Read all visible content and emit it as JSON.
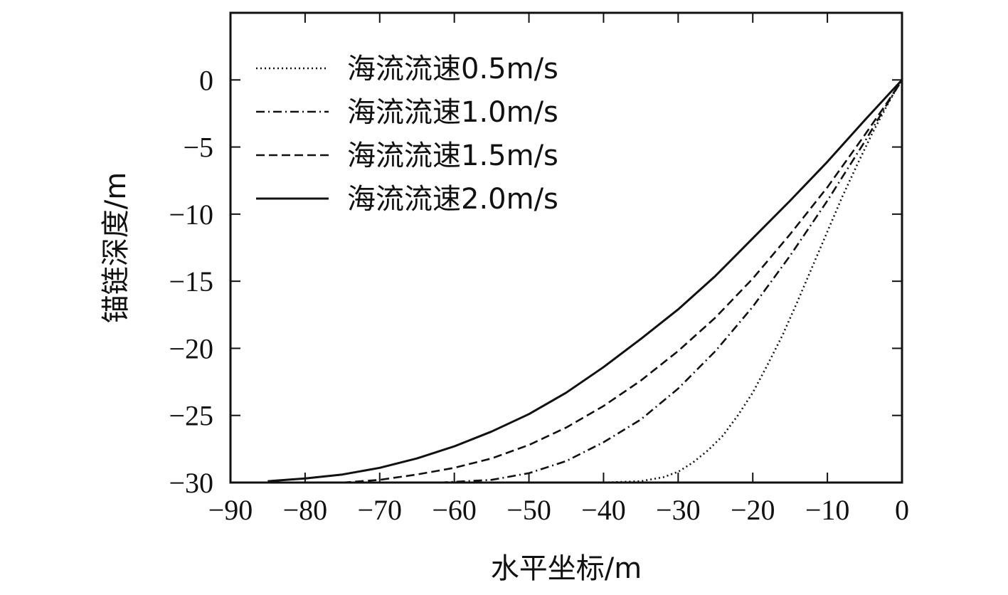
{
  "chart_data": {
    "type": "line",
    "title": "",
    "xlabel": "水平坐标/m",
    "ylabel": "锚链深度/m",
    "xlim": [
      -90,
      0
    ],
    "ylim": [
      -30,
      5
    ],
    "xticks": [
      -90,
      -80,
      -70,
      -60,
      -50,
      -40,
      -30,
      -20,
      -10,
      0
    ],
    "yticks": [
      0,
      -5,
      -10,
      -15,
      -20,
      -25,
      -30
    ],
    "xtick_labels": [
      "−90",
      "−80",
      "−70",
      "−60",
      "−50",
      "−40",
      "−30",
      "−20",
      "−10",
      "0"
    ],
    "ytick_labels": [
      "0",
      "−5",
      "−10",
      "−15",
      "−20",
      "−25",
      "−30"
    ],
    "grid": false,
    "legend_position": "top-left",
    "series": [
      {
        "name": "海流流速0.5m/s",
        "style": "dotted",
        "x": [
          -40,
          -35,
          -32,
          -30,
          -28,
          -26,
          -24,
          -22,
          -20,
          -18,
          -16,
          -14,
          -12,
          -10,
          -8,
          -6,
          -4,
          -2,
          -1,
          0
        ],
        "y": [
          -30,
          -29.9,
          -29.6,
          -29.2,
          -28.5,
          -27.6,
          -26.5,
          -25.0,
          -23.3,
          -21.2,
          -19.0,
          -16.5,
          -13.9,
          -11.3,
          -8.7,
          -6.3,
          -4.0,
          -1.9,
          -0.9,
          0
        ]
      },
      {
        "name": "海流流速1.0m/s",
        "style": "dashdot",
        "x": [
          -62,
          -55,
          -50,
          -45,
          -40,
          -35,
          -30,
          -25,
          -20,
          -15,
          -10,
          -5,
          -2,
          0
        ],
        "y": [
          -30,
          -29.8,
          -29.3,
          -28.4,
          -27.0,
          -25.3,
          -23.0,
          -20.2,
          -16.9,
          -13.1,
          -9.0,
          -4.6,
          -1.8,
          0
        ]
      },
      {
        "name": "海流流速1.5m/s",
        "style": "dashed",
        "x": [
          -75,
          -70,
          -65,
          -60,
          -55,
          -50,
          -45,
          -40,
          -35,
          -30,
          -25,
          -20,
          -15,
          -10,
          -5,
          -2,
          0
        ],
        "y": [
          -30,
          -29.8,
          -29.4,
          -28.9,
          -28.2,
          -27.2,
          -25.9,
          -24.3,
          -22.4,
          -20.2,
          -17.7,
          -14.8,
          -11.5,
          -8.0,
          -4.1,
          -1.7,
          0
        ]
      },
      {
        "name": "海流流速2.0m/s",
        "style": "solid",
        "x": [
          -85,
          -80,
          -75,
          -70,
          -65,
          -60,
          -55,
          -50,
          -45,
          -40,
          -35,
          -30,
          -25,
          -20,
          -15,
          -10,
          -5,
          -2,
          0
        ],
        "y": [
          -29.9,
          -29.7,
          -29.4,
          -28.9,
          -28.2,
          -27.3,
          -26.2,
          -24.9,
          -23.3,
          -21.4,
          -19.3,
          -17.1,
          -14.6,
          -11.8,
          -9.0,
          -6.1,
          -3.0,
          -1.2,
          0
        ]
      }
    ]
  }
}
